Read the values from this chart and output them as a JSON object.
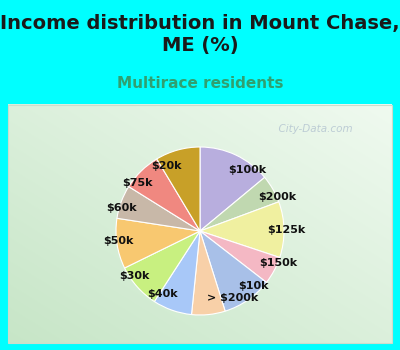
{
  "title": "Income distribution in Mount Chase,\nME (%)",
  "subtitle": "Multirace residents",
  "bg_color": "#00FFFF",
  "chart_bg_colors": [
    "#c8e8c8",
    "#f0faf5"
  ],
  "watermark": "City-Data.com",
  "labels": [
    "$100k",
    "$200k",
    "$125k",
    "$150k",
    "$10k",
    "> $200k",
    "$40k",
    "$30k",
    "$50k",
    "$60k",
    "$75k",
    "$20k"
  ],
  "sizes": [
    13,
    5,
    10,
    5,
    9,
    6,
    7,
    8,
    9,
    6,
    7,
    8
  ],
  "colors": [
    "#b8aede",
    "#c0d8b0",
    "#f0f0a0",
    "#f4b8c4",
    "#a8c0e8",
    "#f8d0a8",
    "#a8c8f8",
    "#c8f080",
    "#f8c870",
    "#c8b8a8",
    "#f08880",
    "#c8a028"
  ],
  "label_fontsize": 8,
  "title_fontsize": 14,
  "subtitle_fontsize": 11,
  "title_color": "#1a1a1a",
  "subtitle_color": "#30a070"
}
